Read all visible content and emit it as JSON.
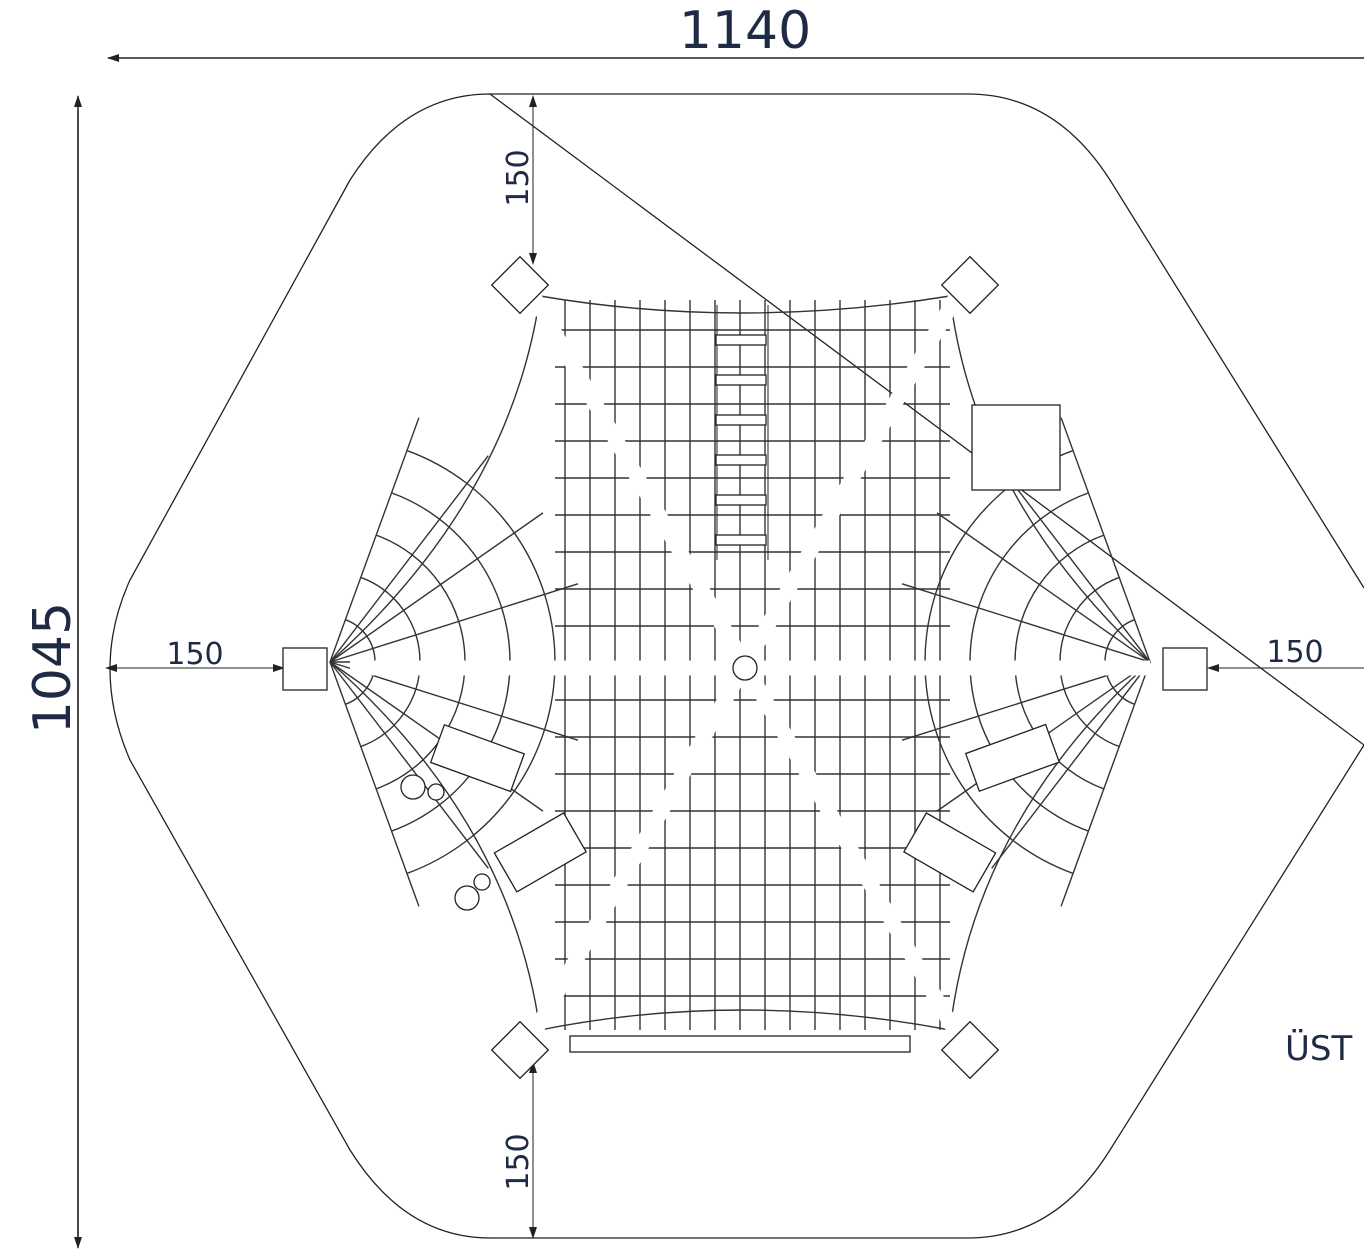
{
  "dimensions": {
    "width": "1140",
    "height": "1045",
    "clearance_top": "150",
    "clearance_bottom": "150",
    "clearance_left": "150",
    "clearance_right": "150"
  },
  "view_label": "ÜST"
}
